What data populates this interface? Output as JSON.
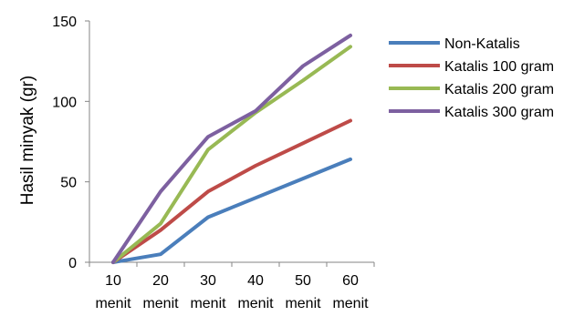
{
  "chart_data": {
    "type": "line",
    "title": "",
    "xlabel": "",
    "ylabel": "Hasil minyak (gr)",
    "categories_top": [
      "10",
      "20",
      "30",
      "40",
      "50",
      "60"
    ],
    "categories_bottom": [
      "menit",
      "menit",
      "menit",
      "menit",
      "menit",
      "menit"
    ],
    "ylim": [
      0,
      150
    ],
    "yticks": [
      "0",
      "50",
      "100",
      "150"
    ],
    "ytick_values": [
      0,
      50,
      100,
      150
    ],
    "grid": false,
    "legend_position": "right",
    "series": [
      {
        "name": "Non-Katalis",
        "color": "#4a7ebb",
        "values": [
          0,
          5,
          28,
          40,
          52,
          64
        ]
      },
      {
        "name": "Katalis 100 gram",
        "color": "#be4b48",
        "values": [
          0,
          20,
          44,
          60,
          74,
          88
        ]
      },
      {
        "name": "Katalis 200 gram",
        "color": "#98b954",
        "values": [
          0,
          24,
          70,
          93,
          113,
          134
        ]
      },
      {
        "name": "Katalis 300 gram",
        "color": "#7d60a0",
        "values": [
          0,
          44,
          78,
          94,
          122,
          141
        ]
      }
    ]
  }
}
